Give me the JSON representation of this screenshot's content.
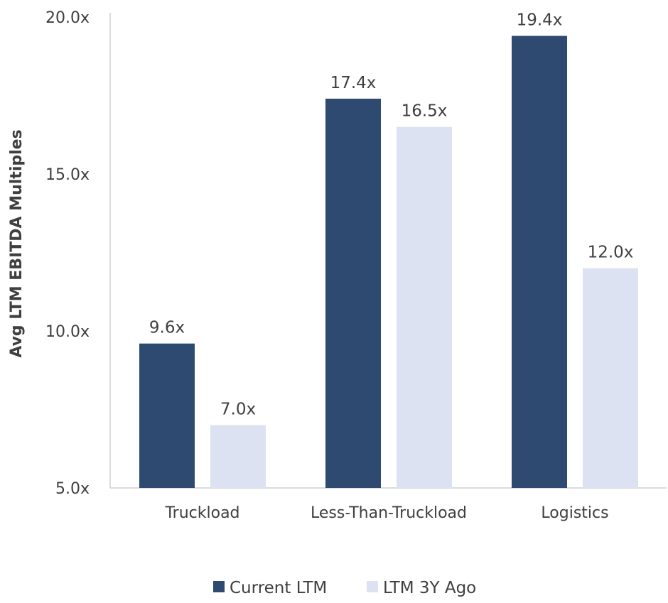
{
  "chart_data": {
    "type": "bar",
    "title": "",
    "xlabel": "",
    "ylabel": "Avg LTM EBITDA Multiples",
    "ylim": [
      5,
      20
    ],
    "yticks": [
      5,
      10,
      15,
      20
    ],
    "ytick_labels": [
      "5.0x",
      "10.0x",
      "15.0x",
      "20.0x"
    ],
    "categories": [
      "Truckload",
      "Less-Than-Truckload",
      "Logistics"
    ],
    "series": [
      {
        "name": "Current LTM",
        "color": "#2e4a70",
        "values": [
          9.6,
          17.4,
          19.4
        ],
        "labels": [
          "9.6x",
          "17.4x",
          "19.4x"
        ]
      },
      {
        "name": "LTM 3Y Ago",
        "color": "#dde2f3",
        "values": [
          7.0,
          16.5,
          12.0
        ],
        "labels": [
          "7.0x",
          "16.5x",
          "12.0x"
        ]
      }
    ],
    "legend_position": "bottom-center",
    "grid": false,
    "axis_color": "#d0d0d0"
  }
}
